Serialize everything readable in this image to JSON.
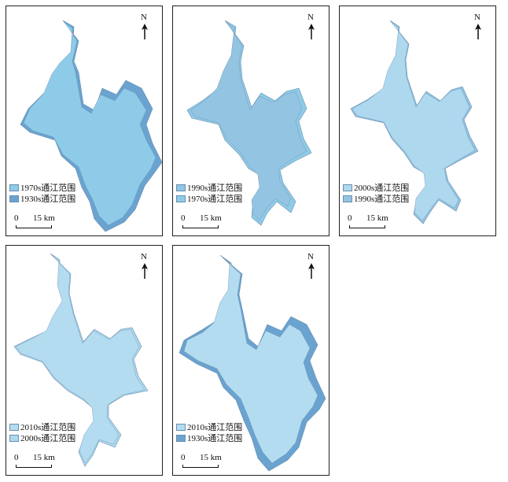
{
  "colors": {
    "c1970": "#8ecbe8",
    "c1930": "#6aa3d0",
    "c1990": "#93c4e2",
    "c2000": "#aed8ee",
    "c2010": "#b4dcf0",
    "outline": "#6a8fb0"
  },
  "north_label": "N",
  "scale": {
    "zero": "0",
    "dist": "15 km"
  },
  "panels": [
    {
      "legend": [
        "1970s通江范围",
        "1930s通江范围"
      ],
      "lake": "c1970",
      "outer": "c1930"
    },
    {
      "legend": [
        "1990s通江范围",
        "1970s通江范围"
      ],
      "lake": "c1990",
      "outer": "c1970"
    },
    {
      "legend": [
        "2000s通江范围",
        "1990s通江范围"
      ],
      "lake": "c2000",
      "outer": "c1990"
    },
    {
      "legend": [
        "2010s通江范围",
        "2000s通江范围"
      ],
      "lake": "c2010",
      "outer": "c2000"
    },
    {
      "legend": [
        "2010s通江范围",
        "1930s通江范围"
      ],
      "lake": "c2010",
      "outer": "c1930"
    }
  ]
}
